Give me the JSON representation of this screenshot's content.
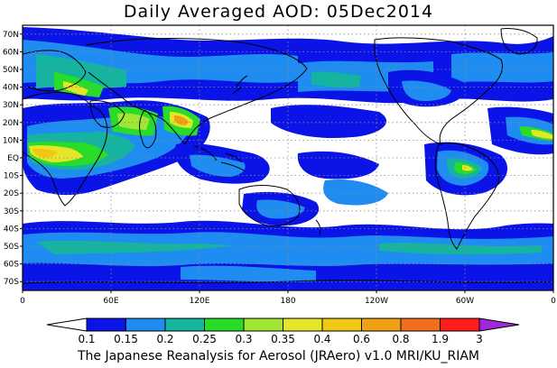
{
  "title": "Daily Averaged AOD: 05Dec2014",
  "credit": "The Japanese Reanalysis for Aerosol (JRAero) v1.0 MRI/KU_RIAM",
  "map": {
    "lat_labels": [
      {
        "lat": 70,
        "text": "70N"
      },
      {
        "lat": 60,
        "text": "60N"
      },
      {
        "lat": 50,
        "text": "50N"
      },
      {
        "lat": 40,
        "text": "40N"
      },
      {
        "lat": 30,
        "text": "30N"
      },
      {
        "lat": 20,
        "text": "20N"
      },
      {
        "lat": 10,
        "text": "10N"
      },
      {
        "lat": 0,
        "text": "EQ"
      },
      {
        "lat": -10,
        "text": "10S"
      },
      {
        "lat": -20,
        "text": "20S"
      },
      {
        "lat": -30,
        "text": "30S"
      },
      {
        "lat": -40,
        "text": "40S"
      },
      {
        "lat": -50,
        "text": "50S"
      },
      {
        "lat": -60,
        "text": "60S"
      },
      {
        "lat": -70,
        "text": "70S"
      }
    ],
    "lon_labels": [
      {
        "lon": 0,
        "text": "0"
      },
      {
        "lon": 60,
        "text": "60E"
      },
      {
        "lon": 120,
        "text": "120E"
      },
      {
        "lon": 180,
        "text": "180"
      },
      {
        "lon": 240,
        "text": "120W"
      },
      {
        "lon": 300,
        "text": "60W"
      },
      {
        "lon": 360,
        "text": "0"
      }
    ],
    "lon_range": [
      0,
      360
    ],
    "lat_range": [
      -75,
      75
    ],
    "grid": true
  },
  "colorbar": {
    "levels": [
      "0.1",
      "0.15",
      "0.2",
      "0.25",
      "0.3",
      "0.35",
      "0.4",
      "0.6",
      "0.8",
      "1.9",
      "3"
    ],
    "colors": [
      "#ffffff",
      "#0a14e6",
      "#1e8cf0",
      "#14b4a0",
      "#28dc28",
      "#a0e632",
      "#e6e628",
      "#f0c814",
      "#f0a014",
      "#f06e1e",
      "#ff1e1e",
      "#a028dc"
    ]
  }
}
